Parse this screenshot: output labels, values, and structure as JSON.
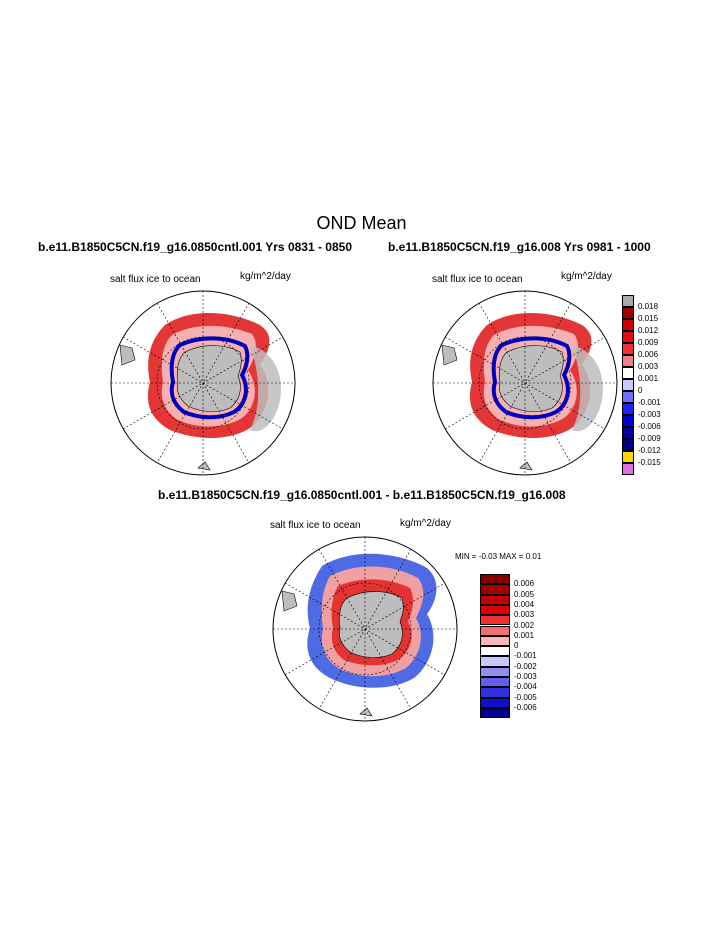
{
  "main_title": "OND Mean",
  "panels": {
    "left": {
      "title": "b.e11.B1850C5CN.f19_g16.0850cntl.001  Yrs 0831 - 0850",
      "variable": "salt flux ice to ocean",
      "units": "kg/m^2/day"
    },
    "right": {
      "title": "b.e11.B1850C5CN.f19_g16.008  Yrs 0981 - 1000",
      "variable": "salt flux ice to ocean",
      "units": "kg/m^2/day"
    },
    "diff": {
      "title": "b.e11.B1850C5CN.f19_g16.0850cntl.001 - b.e11.B1850C5CN.f19_g16.008",
      "variable": "salt flux ice to ocean",
      "units": "kg/m^2/day",
      "stats": "MIN =  -0.03 MAX =   0.01"
    }
  },
  "colorbar_top": {
    "labels": [
      "0.018",
      "0.015",
      "0.012",
      "0.009",
      "0.006",
      "0.003",
      "0.001",
      "0",
      "-0.001",
      "-0.003",
      "-0.006",
      "-0.009",
      "-0.012",
      "-0.015"
    ],
    "colors": [
      "#aaaaaa",
      "#a00000",
      "#cc0000",
      "#e01010",
      "#f03030",
      "#f58080",
      "#ffffff",
      "#c8c8ff",
      "#7070ff",
      "#2020ff",
      "#0000d0",
      "#0000a0",
      "#000080",
      "#ffd700",
      "#e070e0"
    ]
  },
  "colorbar_diff": {
    "labels": [
      "0.006",
      "0.005",
      "0.004",
      "0.003",
      "0.002",
      "0.001",
      "0",
      "-0.001",
      "-0.002",
      "-0.003",
      "-0.004",
      "-0.005",
      "-0.006"
    ],
    "colors": [
      "#800000",
      "#a00000",
      "#c80000",
      "#e00000",
      "#f03030",
      "#f07070",
      "#f8b8b8",
      "#ffffff",
      "#c8c8ff",
      "#9090f0",
      "#6060f0",
      "#3030e0",
      "#1010c8",
      "#000090"
    ]
  }
}
